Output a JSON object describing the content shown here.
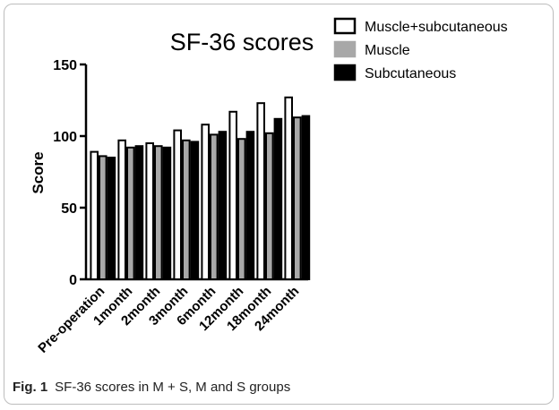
{
  "figure": {
    "label": "Fig. 1",
    "caption": "SF-36 scores in M + S, M and S groups"
  },
  "chart_data": {
    "type": "bar",
    "title": "SF-36 scores",
    "xlabel": "",
    "ylabel": "Score",
    "ylim": [
      0,
      150
    ],
    "yticks": [
      0,
      50,
      100,
      150
    ],
    "categories": [
      "Pre-operation",
      "1month",
      "2month",
      "3month",
      "6month",
      "12month",
      "18month",
      "24month"
    ],
    "series": [
      {
        "name": "Muscle+subcutaneous",
        "color": "#ffffff",
        "values": [
          89,
          97,
          95,
          104,
          108,
          117,
          123,
          127
        ]
      },
      {
        "name": "Muscle",
        "color": "#a8a8a8",
        "values": [
          86,
          92,
          93,
          97,
          101,
          98,
          102,
          113
        ]
      },
      {
        "name": "Subcutaneous",
        "color": "#000000",
        "values": [
          85,
          93,
          92,
          96,
          103,
          103,
          112,
          114
        ]
      }
    ],
    "legend_position": "top-right",
    "grid": false
  }
}
